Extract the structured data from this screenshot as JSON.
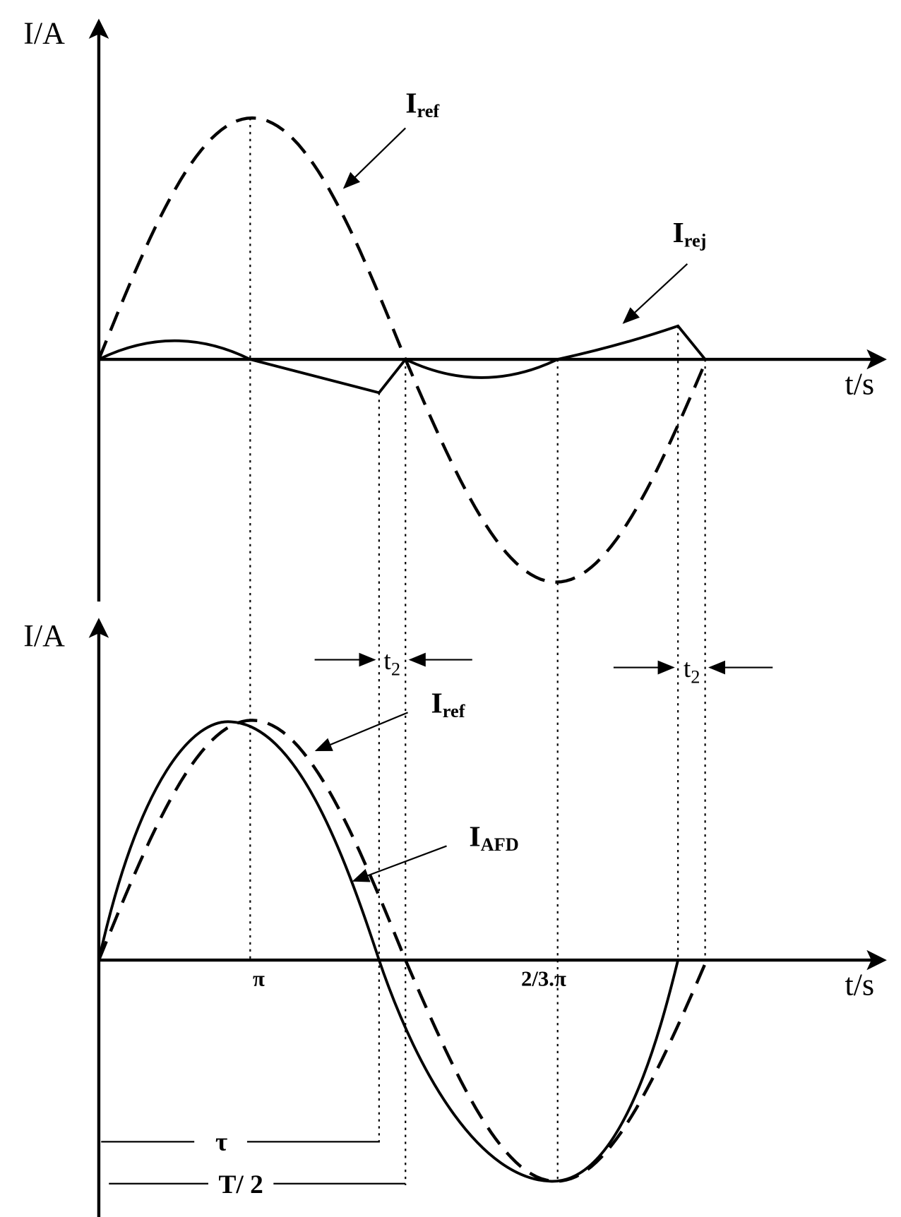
{
  "top": {
    "y_axis_label": "I/A",
    "x_axis_label": "t/s",
    "iref": {
      "main": "I",
      "sub": "ref"
    },
    "irej": {
      "main": "I",
      "sub": "rej"
    }
  },
  "bottom": {
    "y_axis_label": "I/A",
    "x_axis_label": "t/s",
    "t2_left": {
      "main": "t",
      "sub": "2"
    },
    "t2_right": {
      "main": "t",
      "sub": "2"
    },
    "iref": {
      "main": "I",
      "sub": "ref"
    },
    "iafd": {
      "main": "I",
      "sub": "AFD"
    },
    "pi_label": "π",
    "two_thirds_pi_label": "2/3.π",
    "tau_label": "τ",
    "half_period_label": "T/ 2"
  }
}
